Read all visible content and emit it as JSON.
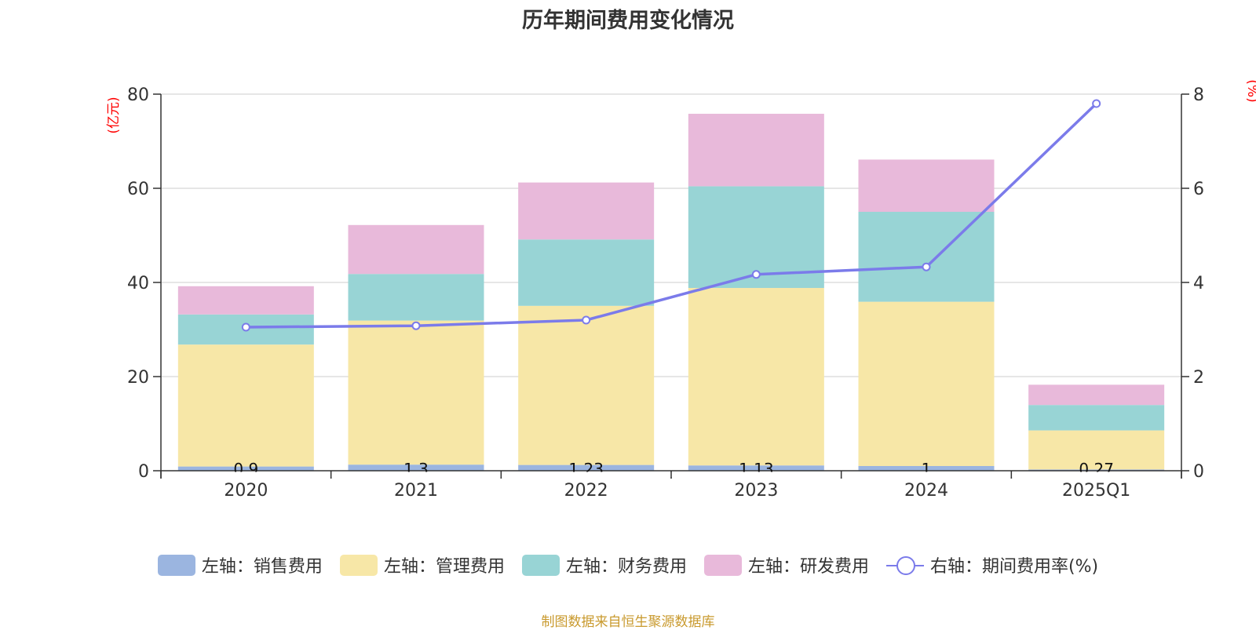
{
  "chart_data": {
    "type": "bar",
    "stacked": true,
    "title": "历年期间费用变化情况",
    "categories": [
      "2020",
      "2021",
      "2022",
      "2023",
      "2024",
      "2025Q1"
    ],
    "series": [
      {
        "name": "左轴：销售费用",
        "axis": "left",
        "color": "#9bb5e0",
        "values": [
          0.9,
          1.3,
          1.23,
          1.13,
          1.0,
          0.27
        ],
        "labels": [
          "0.9",
          "1.3",
          "1.23",
          "1.13",
          "1",
          "0.27"
        ]
      },
      {
        "name": "左轴：管理费用",
        "axis": "left",
        "color": "#f7e7a7",
        "values": [
          25.9,
          30.6,
          33.8,
          37.7,
          34.9,
          8.3
        ]
      },
      {
        "name": "左轴：财务费用",
        "axis": "left",
        "color": "#98d4d5",
        "values": [
          6.4,
          9.9,
          14.1,
          21.6,
          19.1,
          5.4
        ]
      },
      {
        "name": "左轴：研发费用",
        "axis": "left",
        "color": "#e8b9da",
        "values": [
          6.0,
          10.4,
          12.1,
          15.4,
          11.1,
          4.3
        ]
      }
    ],
    "line_series": {
      "name": "右轴：期间费用率(%)",
      "axis": "right",
      "color": "#7b7bea",
      "values": [
        3.05,
        3.08,
        3.2,
        4.17,
        4.33,
        7.8
      ]
    },
    "left_axis": {
      "unit": "(亿元)",
      "min": 0,
      "max": 80,
      "ticks": [
        0,
        20,
        40,
        60,
        80
      ]
    },
    "right_axis": {
      "unit": "(%)",
      "min": 0,
      "max": 8,
      "ticks": [
        0,
        2,
        4,
        6,
        8
      ]
    },
    "grid": true,
    "legend_position": "bottom"
  },
  "source_note": "制图数据来自恒生聚源数据库"
}
